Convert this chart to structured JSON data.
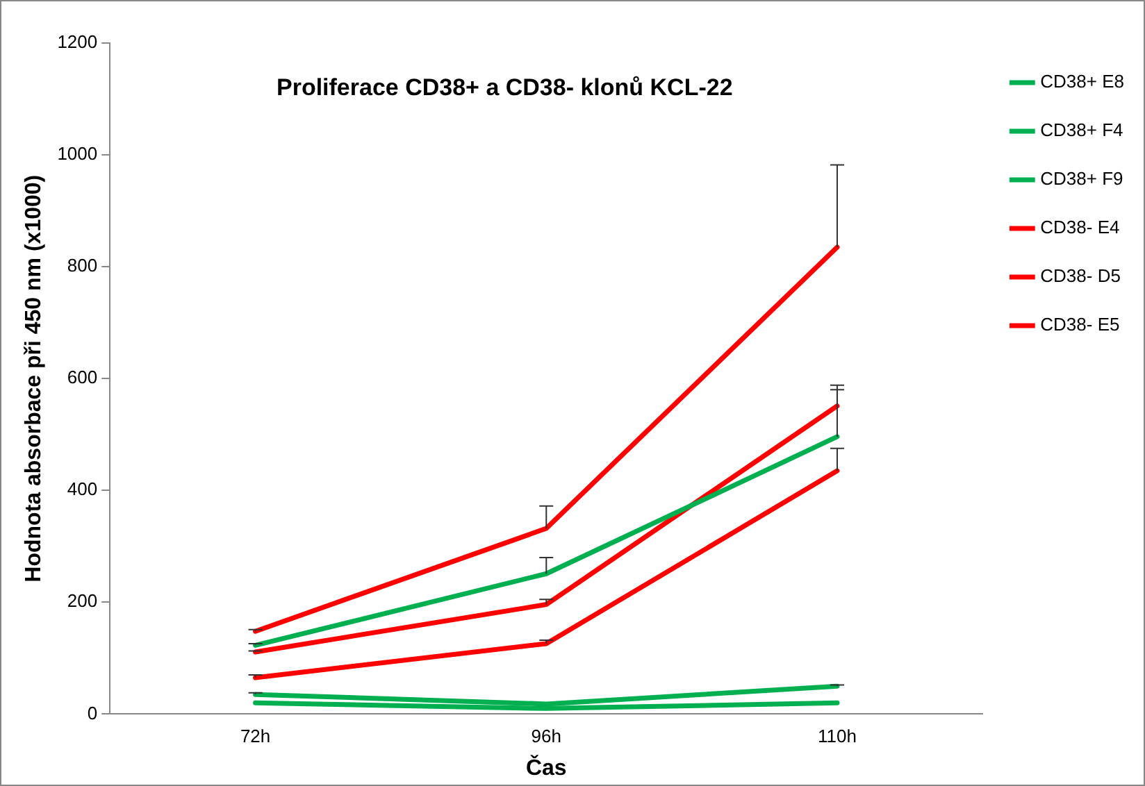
{
  "chart_data": {
    "type": "line",
    "title": "Proliferace CD38+ a CD38- klonů KCL-22",
    "xlabel": "Čas",
    "ylabel": "Hodnota absorbace při 450 nm (x1000)",
    "categories": [
      "72h",
      "96h",
      "110h"
    ],
    "ylim": [
      0,
      1200
    ],
    "yticks": [
      0,
      200,
      400,
      600,
      800,
      1000,
      1200
    ],
    "grid": false,
    "legend": "right",
    "marker": "none",
    "line_style": "solid",
    "series": [
      {
        "name": "CD38+ E8",
        "color": "#00b050",
        "values": [
          123,
          251,
          496
        ],
        "errors": [
          [
            123,
            126
          ],
          [
            251,
            280
          ],
          [
            496,
            580
          ]
        ]
      },
      {
        "name": "CD38+ F4",
        "color": "#00b050",
        "values": [
          35,
          18,
          50
        ],
        "errors": [
          [
            35,
            38
          ],
          null,
          [
            50,
            52
          ]
        ]
      },
      {
        "name": "CD38+ F9",
        "color": "#00b050",
        "values": [
          20,
          10,
          20
        ],
        "errors": [
          null,
          null,
          null
        ]
      },
      {
        "name": "CD38- E4",
        "color": "#ff0000",
        "values": [
          148,
          332,
          835
        ],
        "errors": [
          [
            148,
            151
          ],
          [
            332,
            372
          ],
          [
            835,
            982
          ]
        ]
      },
      {
        "name": "CD38- D5",
        "color": "#ff0000",
        "values": [
          111,
          196,
          551
        ],
        "errors": [
          [
            111,
            113
          ],
          [
            196,
            205
          ],
          [
            551,
            588
          ]
        ]
      },
      {
        "name": "CD38- E5",
        "color": "#ff0000",
        "values": [
          65,
          126,
          435
        ],
        "errors": [
          [
            65,
            70
          ],
          [
            126,
            132
          ],
          [
            435,
            475
          ]
        ]
      }
    ]
  }
}
